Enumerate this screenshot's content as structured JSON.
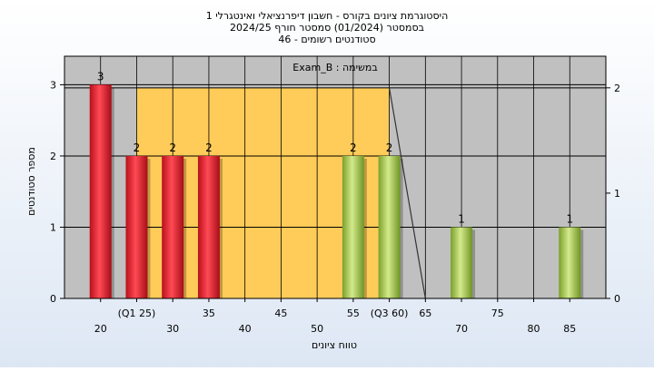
{
  "chart_data": {
    "type": "bar",
    "title_lines": [
      "היסטוגרמת ציונים בקורס - חשבון דיפרנציאלי ואינטגרלי 1",
      "בסמסטר  (01/2024)  סמסטר חורף 2024/25",
      "סטודנטים רשומים - 46"
    ],
    "plot_label": "במשימה : Exam_B",
    "xlabel": "טווח ציונים",
    "ylabel": "מספר סטודנטים",
    "xlim": [
      15,
      90
    ],
    "ylim": [
      0,
      3.4
    ],
    "y_ticks": [
      0,
      1,
      2,
      3
    ],
    "right_ylim": [
      0,
      2.3
    ],
    "right_ticks": [
      0,
      1,
      2
    ],
    "x_tick_labels_upper": [
      {
        "x": 25,
        "label": "(Q1 25)"
      },
      {
        "x": 35,
        "label": "35"
      },
      {
        "x": 45,
        "label": "45"
      },
      {
        "x": 55,
        "label": "55"
      },
      {
        "x": 60,
        "label": "(Q3 60)"
      },
      {
        "x": 65,
        "label": "65"
      },
      {
        "x": 75,
        "label": "75"
      }
    ],
    "x_tick_labels_lower": [
      {
        "x": 20,
        "label": "20"
      },
      {
        "x": 30,
        "label": "30"
      },
      {
        "x": 40,
        "label": "40"
      },
      {
        "x": 50,
        "label": "50"
      },
      {
        "x": 70,
        "label": "70"
      },
      {
        "x": 80,
        "label": "80"
      },
      {
        "x": 85,
        "label": "85"
      }
    ],
    "vertical_grid_x": [
      20,
      25,
      30,
      35,
      40,
      45,
      50,
      55,
      60,
      65,
      70,
      75,
      80,
      85
    ],
    "series": [
      {
        "color": "#e8313b",
        "points": [
          {
            "x": 20,
            "y": 3,
            "label": "3"
          },
          {
            "x": 25,
            "y": 2,
            "label": "2"
          },
          {
            "x": 30,
            "y": 2,
            "label": "2"
          },
          {
            "x": 35,
            "y": 2,
            "label": "2"
          }
        ]
      },
      {
        "color": "#9cc63f",
        "points": [
          {
            "x": 55,
            "y": 2,
            "label": "2"
          },
          {
            "x": 60,
            "y": 2,
            "label": "2"
          },
          {
            "x": 70,
            "y": 1,
            "label": "1"
          },
          {
            "x": 85,
            "y": 1,
            "label": "1"
          }
        ]
      }
    ],
    "interquartile_band": {
      "x_from": 25,
      "x_to": 60,
      "height_right_axis": 2,
      "color": "#ffcc59"
    },
    "distribution_line": {
      "x_from": 60,
      "x_to": 65,
      "color": "#333333"
    }
  }
}
